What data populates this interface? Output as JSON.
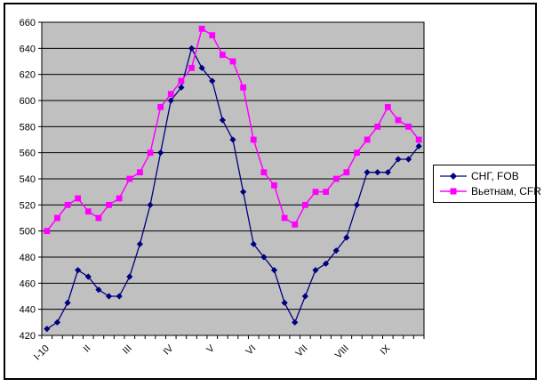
{
  "chart_data": {
    "type": "line",
    "title": "",
    "plot_background": "#c0c0c0",
    "grid": true,
    "grid_color": "#000000",
    "ylim": [
      420,
      660
    ],
    "ytick_step": 20,
    "y_tick_labels": [
      "420",
      "440",
      "460",
      "480",
      "500",
      "520",
      "540",
      "560",
      "580",
      "600",
      "620",
      "640",
      "660"
    ],
    "x_tick_labels": [
      {
        "index": 0,
        "label": "I-10"
      },
      {
        "index": 4,
        "label": "II"
      },
      {
        "index": 8,
        "label": "III"
      },
      {
        "index": 12,
        "label": "IV"
      },
      {
        "index": 16,
        "label": "V"
      },
      {
        "index": 20,
        "label": "VI"
      },
      {
        "index": 25,
        "label": "VII"
      },
      {
        "index": 29,
        "label": "VIII"
      },
      {
        "index": 33,
        "label": "IX"
      }
    ],
    "legend_position": "right",
    "series": [
      {
        "name": "СНГ, FOB",
        "color": "#000080",
        "marker": "diamond",
        "values": [
          425,
          430,
          445,
          470,
          465,
          455,
          450,
          450,
          465,
          490,
          520,
          560,
          600,
          610,
          640,
          625,
          615,
          585,
          570,
          530,
          490,
          480,
          470,
          445,
          430,
          450,
          470,
          475,
          485,
          495,
          520,
          545,
          545,
          545,
          555,
          555,
          565
        ]
      },
      {
        "name": "Вьетнам, CFR",
        "color": "#ff00ff",
        "marker": "square",
        "values": [
          500,
          510,
          520,
          525,
          515,
          510,
          520,
          525,
          540,
          545,
          560,
          595,
          605,
          615,
          625,
          655,
          650,
          635,
          630,
          610,
          570,
          545,
          535,
          510,
          505,
          520,
          530,
          530,
          540,
          545,
          560,
          570,
          580,
          595,
          585,
          580,
          570
        ]
      }
    ]
  }
}
